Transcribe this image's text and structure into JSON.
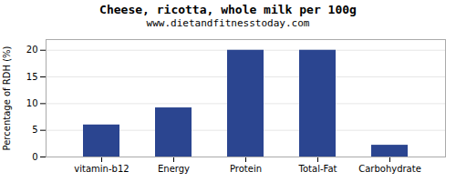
{
  "chart_data": {
    "type": "bar",
    "title": "Cheese, ricotta, whole milk per 100g",
    "subtitle": "www.dietandfitnesstoday.com",
    "categories": [
      "vitamin-b12",
      "Energy",
      "Protein",
      "Total-Fat",
      "Carbohydrate"
    ],
    "values": [
      6.0,
      9.2,
      20.0,
      20.0,
      2.2
    ],
    "color": "#2b4590",
    "ylabel": "Percentage of RDH (%)",
    "ylim": [
      0,
      22
    ],
    "yticks": [
      0,
      5,
      10,
      15,
      20
    ],
    "grid": true
  }
}
